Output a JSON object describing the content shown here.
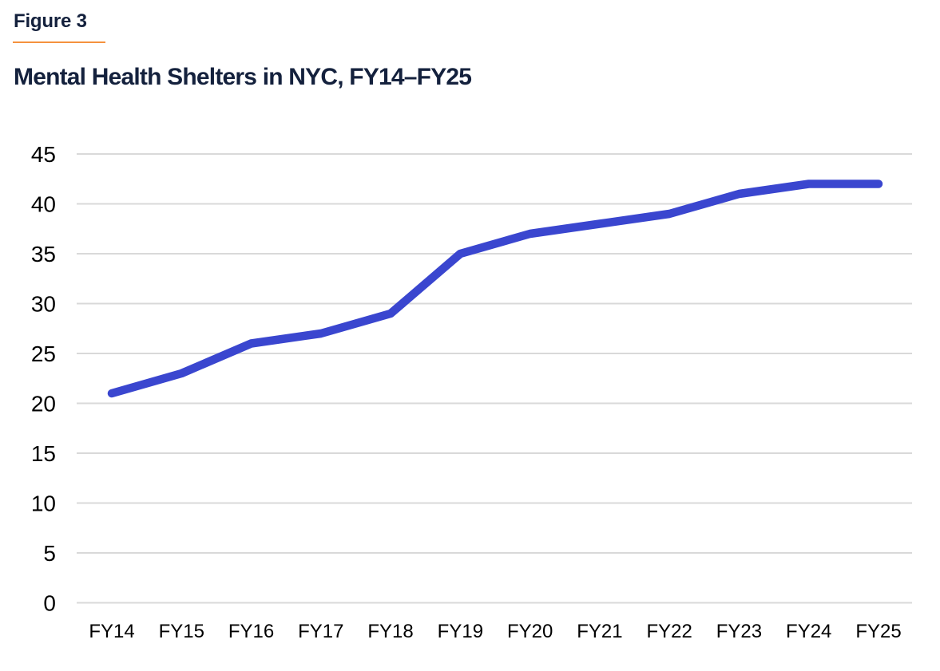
{
  "figure": {
    "label": "Figure 3"
  },
  "title": "Mental Health Shelters in NYC, FY14–FY25",
  "colors": {
    "background": "#ffffff",
    "title_text": "#14213d",
    "accent_rule": "#f5923e",
    "line": "#3a46cf",
    "grid": "#d9d9d9",
    "axis_text": "#000000"
  },
  "chart_data": {
    "type": "line",
    "title": "Mental Health Shelters in NYC, FY14–FY25",
    "categories": [
      "FY14",
      "FY15",
      "FY16",
      "FY17",
      "FY18",
      "FY19",
      "FY20",
      "FY21",
      "FY22",
      "FY23",
      "FY24",
      "FY25"
    ],
    "series": [
      {
        "name": "",
        "values": [
          21,
          23,
          26,
          27,
          29,
          35,
          37,
          38,
          39,
          41,
          42,
          42
        ]
      }
    ],
    "xlabel": "",
    "ylabel": "",
    "ylim": [
      0,
      45
    ],
    "y_ticks": [
      0,
      5,
      10,
      15,
      20,
      25,
      30,
      35,
      40,
      45
    ],
    "grid": "horizontal",
    "legend": "none"
  }
}
